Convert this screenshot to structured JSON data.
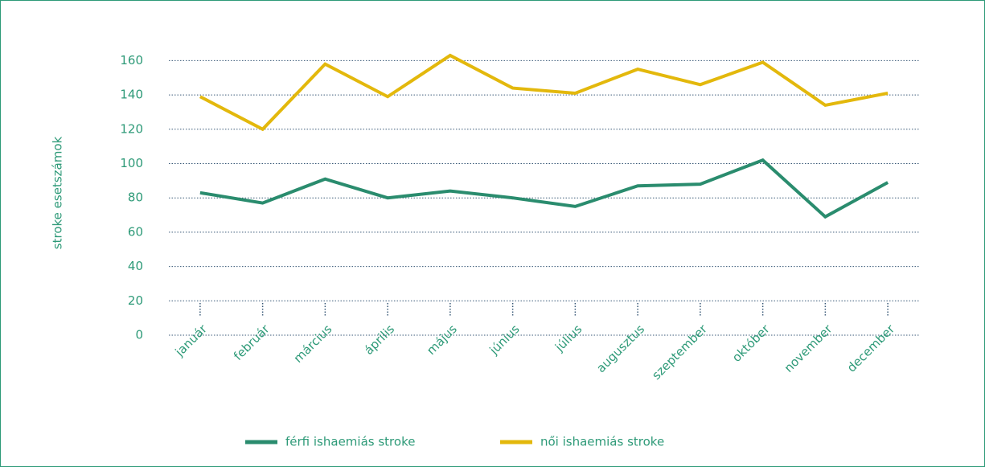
{
  "chart_data": {
    "type": "line",
    "y_label": "stroke esetszámok",
    "categories": [
      "január",
      "február",
      "március",
      "április",
      "május",
      "június",
      "július",
      "augusztus",
      "szeptember",
      "október",
      "november",
      "december"
    ],
    "series": [
      {
        "name": "férfi ishaemiás stroke",
        "color": "#2a8c6e",
        "values": [
          83,
          77,
          91,
          80,
          84,
          80,
          75,
          87,
          88,
          102,
          69,
          89
        ]
      },
      {
        "name": "női ishaemiás stroke",
        "color": "#e3b80c",
        "values": [
          139,
          120,
          158,
          139,
          163,
          144,
          141,
          155,
          146,
          159,
          134,
          141
        ]
      }
    ],
    "ylim": [
      0,
      180
    ],
    "yticks": [
      0,
      20,
      40,
      60,
      80,
      100,
      120,
      140,
      160
    ],
    "grid": true,
    "legend": "bottom"
  }
}
